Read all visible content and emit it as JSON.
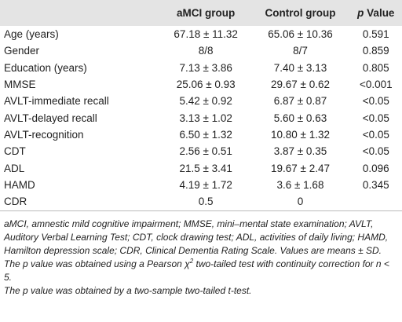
{
  "table": {
    "header": [
      {
        "text": "aMCI group"
      },
      {
        "text": "Control group"
      },
      {
        "italic": "p",
        "text": " Value"
      }
    ],
    "rows": [
      [
        "Age (years)",
        "67.18 ± 11.32",
        "65.06 ± 10.36",
        "0.591"
      ],
      [
        "Gender",
        "8/8",
        "8/7",
        "0.859"
      ],
      [
        "Education (years)",
        "7.13 ± 3.86",
        "7.40 ± 3.13",
        "0.805"
      ],
      [
        "MMSE",
        "25.06 ± 0.93",
        "29.67 ± 0.62",
        "<0.001"
      ],
      [
        "AVLT-immediate recall",
        "5.42 ± 0.92",
        "6.87 ± 0.87",
        "<0.05"
      ],
      [
        "AVLT-delayed recall",
        "3.13 ± 1.02",
        "5.60 ± 0.63",
        "<0.05"
      ],
      [
        "AVLT-recognition",
        "6.50 ± 1.32",
        "10.80 ± 1.32",
        "<0.05"
      ],
      [
        "CDT",
        "2.56 ± 0.51",
        "3.87 ± 0.35",
        "<0.05"
      ],
      [
        "ADL",
        "21.5 ± 3.41",
        "19.67 ± 2.47",
        "0.096"
      ],
      [
        "HAMD",
        "4.19 ± 1.72",
        "3.6 ± 1.68",
        "0.345"
      ],
      [
        "CDR",
        "0.5",
        "0"
      ]
    ]
  },
  "notes": [
    "aMCI, amnestic mild cognitive impairment; MMSE, mini–mental state examination; AVLT, Auditory Verbal Learning Test; CDT, clock drawing test; ADL, activities of daily living; HAMD, Hamilton depression scale; CDR, Clinical Dementia Rating Scale. Values are means ± SD. The p value was obtained using a Pearson χ",
    "2",
    " two-tailed test with continuity correction for n < 5.",
    "The p value was obtained by a two-sample two-tailed t-test."
  ]
}
